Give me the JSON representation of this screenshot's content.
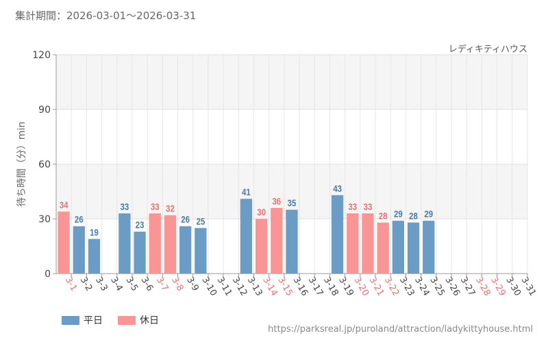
{
  "header": {
    "period_label": "集計期間：2026-03-01～2026-03-31",
    "attraction_name": "レディキティハウス"
  },
  "legend": {
    "weekday_label": "平日",
    "holiday_label": "休日"
  },
  "footer": {
    "source_url": "https://parksreal.jp/puroland/attraction/ladykittyhouse.html"
  },
  "colors": {
    "weekday": "#6a9cc6",
    "holiday": "#fa9595",
    "weekday_text": "#4a7aa5",
    "holiday_text": "#f06e6e"
  },
  "chart_data": {
    "type": "bar",
    "title": "",
    "xlabel": "",
    "ylabel": "待ち時間（分）min",
    "ylim": [
      0,
      120
    ],
    "yticks": [
      0,
      30,
      60,
      90,
      120
    ],
    "categories": [
      "3-1",
      "3-2",
      "3-3",
      "3-4",
      "3-5",
      "3-6",
      "3-7",
      "3-8",
      "3-9",
      "3-10",
      "3-11",
      "3-12",
      "3-13",
      "3-14",
      "3-15",
      "3-16",
      "3-17",
      "3-18",
      "3-19",
      "3-20",
      "3-21",
      "3-22",
      "3-23",
      "3-24",
      "3-25",
      "3-26",
      "3-27",
      "3-28",
      "3-29",
      "3-30",
      "3-31"
    ],
    "values": [
      34,
      26,
      19,
      null,
      33,
      23,
      33,
      32,
      26,
      25,
      null,
      null,
      41,
      30,
      36,
      35,
      null,
      null,
      43,
      33,
      33,
      28,
      29,
      28,
      29,
      null,
      null,
      null,
      null,
      null,
      null
    ],
    "holiday": [
      true,
      false,
      false,
      false,
      false,
      false,
      true,
      true,
      false,
      false,
      false,
      false,
      false,
      true,
      true,
      false,
      false,
      false,
      false,
      true,
      true,
      true,
      false,
      false,
      false,
      false,
      false,
      true,
      true,
      false,
      false
    ],
    "series": [
      {
        "name": "平日"
      },
      {
        "name": "休日"
      }
    ]
  }
}
